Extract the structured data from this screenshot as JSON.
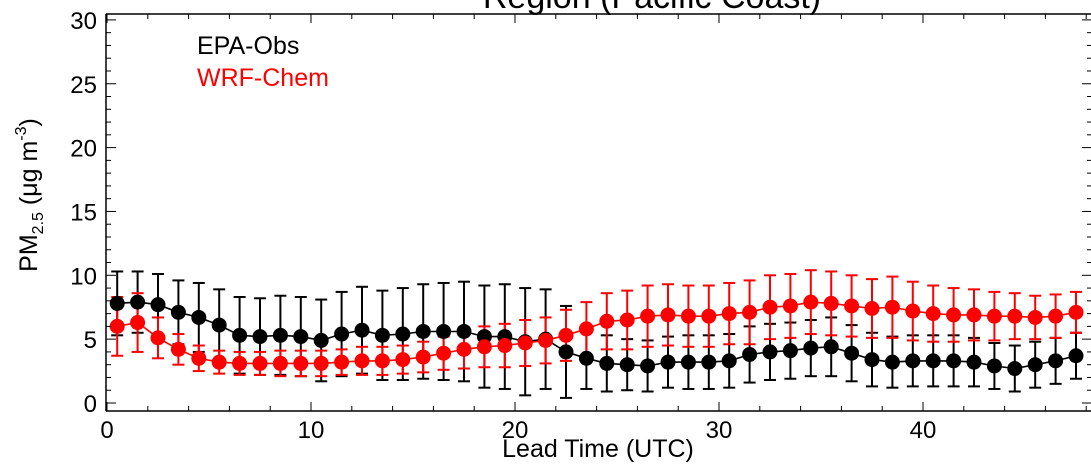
{
  "chart_data": {
    "type": "scatter",
    "title": "Region (Pacific Coast)",
    "xlabel": "Lead Time (UTC)",
    "ylabel": {
      "base": "PM",
      "sub": "2.5",
      "unit": " (μg m",
      "sup": "-3",
      "close": ")"
    },
    "xlim": [
      0,
      48
    ],
    "ylim": [
      0,
      30
    ],
    "xticks": [
      0,
      10,
      20,
      30,
      40
    ],
    "yticks": [
      0,
      5,
      10,
      15,
      20,
      25,
      30
    ],
    "legend_placement": "top-left",
    "grid": false,
    "x": [
      0.5,
      1.5,
      2.5,
      3.5,
      4.5,
      5.5,
      6.5,
      7.5,
      8.5,
      9.5,
      10.5,
      11.5,
      12.5,
      13.5,
      14.5,
      15.5,
      16.5,
      17.5,
      18.5,
      19.5,
      20.5,
      21.5,
      22.5,
      23.5,
      24.5,
      25.5,
      26.5,
      27.5,
      28.5,
      29.5,
      30.5,
      31.5,
      32.5,
      33.5,
      34.5,
      35.5,
      36.5,
      37.5,
      38.5,
      39.5,
      40.5,
      41.5,
      42.5,
      43.5,
      44.5,
      45.5,
      46.5,
      47.5
    ],
    "series": [
      {
        "name": "EPA-Obs",
        "color": "#000000",
        "values": [
          7.8,
          7.9,
          7.7,
          7.1,
          6.7,
          6.1,
          5.3,
          5.2,
          5.3,
          5.2,
          4.9,
          5.4,
          5.7,
          5.3,
          5.4,
          5.6,
          5.6,
          5.6,
          5.2,
          5.2,
          4.8,
          5.0,
          4.0,
          3.5,
          3.1,
          3.0,
          2.9,
          3.2,
          3.2,
          3.2,
          3.3,
          3.8,
          4.0,
          4.1,
          4.3,
          4.4,
          3.9,
          3.4,
          3.2,
          3.3,
          3.3,
          3.3,
          3.2,
          2.9,
          2.7,
          3.0,
          3.3,
          3.7
        ],
        "error": [
          2.5,
          2.4,
          2.4,
          2.5,
          2.7,
          2.8,
          3.0,
          3.0,
          3.1,
          3.1,
          3.2,
          3.3,
          3.4,
          3.5,
          3.6,
          3.7,
          3.8,
          3.9,
          4.0,
          4.1,
          4.2,
          3.9,
          3.6,
          2.4,
          2.2,
          2.0,
          2.0,
          2.0,
          2.1,
          2.1,
          2.1,
          2.2,
          2.2,
          2.2,
          2.2,
          2.3,
          2.2,
          2.1,
          2.0,
          2.0,
          2.0,
          2.0,
          1.9,
          1.8,
          1.8,
          1.8,
          1.8,
          1.8
        ]
      },
      {
        "name": "WRF-Chem",
        "color": "#ff0000",
        "values": [
          6.0,
          6.3,
          5.1,
          4.2,
          3.5,
          3.2,
          3.1,
          3.1,
          3.1,
          3.1,
          3.1,
          3.2,
          3.3,
          3.3,
          3.4,
          3.6,
          3.9,
          4.2,
          4.4,
          4.5,
          4.7,
          4.9,
          5.3,
          5.8,
          6.4,
          6.5,
          6.8,
          6.9,
          6.8,
          6.8,
          7.0,
          7.1,
          7.5,
          7.6,
          7.9,
          7.8,
          7.6,
          7.4,
          7.5,
          7.2,
          7.0,
          6.9,
          6.9,
          6.8,
          6.8,
          6.7,
          6.8,
          7.1
        ],
        "error": [
          2.3,
          2.3,
          1.6,
          1.2,
          1.0,
          0.9,
          0.9,
          0.9,
          1.0,
          1.0,
          1.0,
          1.0,
          1.1,
          1.1,
          1.1,
          1.2,
          1.3,
          1.5,
          1.6,
          1.7,
          1.8,
          1.8,
          2.0,
          2.1,
          2.2,
          2.3,
          2.4,
          2.4,
          2.4,
          2.4,
          2.4,
          2.5,
          2.5,
          2.5,
          2.5,
          2.5,
          2.4,
          2.3,
          2.4,
          2.3,
          2.2,
          2.1,
          2.0,
          1.9,
          1.8,
          1.7,
          1.7,
          1.6
        ]
      }
    ]
  }
}
